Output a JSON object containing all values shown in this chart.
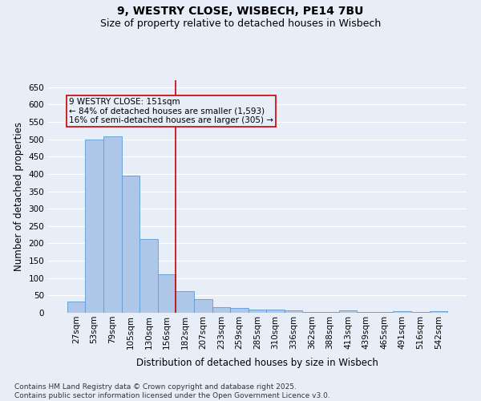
{
  "title_line1": "9, WESTRY CLOSE, WISBECH, PE14 7BU",
  "title_line2": "Size of property relative to detached houses in Wisbech",
  "xlabel": "Distribution of detached houses by size in Wisbech",
  "ylabel": "Number of detached properties",
  "categories": [
    "27sqm",
    "53sqm",
    "79sqm",
    "105sqm",
    "130sqm",
    "156sqm",
    "182sqm",
    "207sqm",
    "233sqm",
    "259sqm",
    "285sqm",
    "310sqm",
    "336sqm",
    "362sqm",
    "388sqm",
    "413sqm",
    "439sqm",
    "465sqm",
    "491sqm",
    "516sqm",
    "542sqm"
  ],
  "values": [
    33,
    499,
    508,
    395,
    213,
    110,
    62,
    40,
    17,
    13,
    9,
    9,
    6,
    2,
    2,
    7,
    2,
    2,
    4,
    2,
    5
  ],
  "bar_color": "#aec6e8",
  "bar_edgecolor": "#5b9bd5",
  "vline_x": 5.5,
  "vline_color": "#cc0000",
  "annotation_text": "9 WESTRY CLOSE: 151sqm\n← 84% of detached houses are smaller (1,593)\n16% of semi-detached houses are larger (305) →",
  "annotation_box_color": "#cc0000",
  "ylim": [
    0,
    670
  ],
  "yticks": [
    0,
    50,
    100,
    150,
    200,
    250,
    300,
    350,
    400,
    450,
    500,
    550,
    600,
    650
  ],
  "background_color": "#e8eef8",
  "grid_color": "#ffffff",
  "footnote": "Contains HM Land Registry data © Crown copyright and database right 2025.\nContains public sector information licensed under the Open Government Licence v3.0.",
  "title_fontsize": 10,
  "subtitle_fontsize": 9,
  "axis_label_fontsize": 8.5,
  "tick_fontsize": 7.5,
  "annotation_fontsize": 7.5,
  "footnote_fontsize": 6.5
}
